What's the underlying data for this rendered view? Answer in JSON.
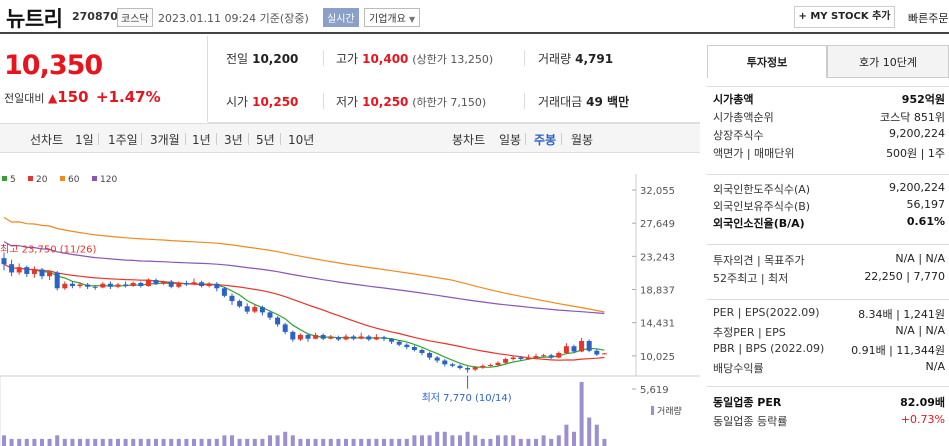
{
  "header": {
    "name": "뉴트리",
    "code": "270870",
    "market": "코스닥",
    "datetime": "2023.01.11 09:24 기준(장중)",
    "realtime": "실시간",
    "company_info": "기업개요",
    "mystock": "+ MY STOCK 추가",
    "quick_order": "빠른주문"
  },
  "price": {
    "current": "10,350",
    "change_label": "전일대비",
    "change_arrow": "▲",
    "change": "150",
    "change_pct": "+1.47%"
  },
  "quote": {
    "prev_label": "전일",
    "prev": "10,200",
    "high_label": "고가",
    "high": "10,400",
    "upper_limit": "(상한가 13,250)",
    "volume_label": "거래량",
    "volume": "4,791",
    "open_label": "시가",
    "open": "10,250",
    "low_label": "저가",
    "low": "10,250",
    "lower_limit": "(하한가 7,150)",
    "amount_label": "거래대금",
    "amount": "49 백만"
  },
  "periods": {
    "line_label": "선차트",
    "items": [
      "1일",
      "1주일",
      "3개월",
      "1년",
      "3년",
      "5년",
      "10년"
    ],
    "candle_label": "봉차트",
    "candles": [
      "일봉",
      "주봉",
      "월봉"
    ],
    "active_candle": "주봉"
  },
  "chart_data": {
    "type": "candlestick",
    "legend": [
      {
        "name": "5",
        "color": "#2fa52f"
      },
      {
        "name": "20",
        "color": "#e8342a"
      },
      {
        "name": "60",
        "color": "#f08a1c"
      },
      {
        "name": "120",
        "color": "#8a57b8"
      }
    ],
    "y_ticks": [
      "32,055",
      "27,649",
      "23,243",
      "18,837",
      "14,431",
      "10,025",
      "5,619"
    ],
    "ylim": [
      5619,
      32055
    ],
    "high_label": "최고 23,750 (11/26)",
    "low_label": "최저 7,770 (10/14)",
    "volume_label": "거래량",
    "candles": [
      [
        23000,
        22200,
        23750,
        21400
      ],
      [
        22200,
        21100,
        22800,
        20600
      ],
      [
        21100,
        21800,
        22300,
        20800
      ],
      [
        21800,
        20900,
        22000,
        20500
      ],
      [
        20900,
        21500,
        21900,
        20400
      ],
      [
        21500,
        20600,
        21700,
        20200
      ],
      [
        20600,
        21100,
        21300,
        20100
      ],
      [
        21100,
        19000,
        21300,
        18700
      ],
      [
        19000,
        19600,
        19900,
        18800
      ],
      [
        19600,
        19300,
        19900,
        19000
      ],
      [
        19300,
        19500,
        19800,
        19000
      ],
      [
        19500,
        19200,
        19700,
        18900
      ],
      [
        19200,
        19100,
        19400,
        18800
      ],
      [
        19100,
        19600,
        19800,
        19000
      ],
      [
        19600,
        19200,
        19900,
        18900
      ],
      [
        19200,
        19500,
        19700,
        19000
      ],
      [
        19500,
        19300,
        19900,
        19100
      ],
      [
        19300,
        19700,
        19900,
        19200
      ],
      [
        19700,
        19300,
        19900,
        19100
      ],
      [
        19300,
        20100,
        20300,
        19200
      ],
      [
        20100,
        19600,
        20300,
        19400
      ],
      [
        19600,
        19900,
        20000,
        19400
      ],
      [
        19900,
        19200,
        20100,
        19000
      ],
      [
        19200,
        19700,
        19900,
        19000
      ],
      [
        19700,
        19500,
        20000,
        19300
      ],
      [
        19500,
        19800,
        20300,
        19400
      ],
      [
        19800,
        19300,
        20000,
        19100
      ],
      [
        19300,
        19600,
        19800,
        19100
      ],
      [
        19600,
        19000,
        19800,
        18600
      ],
      [
        19000,
        18000,
        19200,
        17800
      ],
      [
        18000,
        17300,
        18300,
        16800
      ],
      [
        17300,
        16600,
        17500,
        16400
      ],
      [
        16600,
        15900,
        17000,
        15600
      ],
      [
        15900,
        16500,
        16800,
        15700
      ],
      [
        16500,
        15800,
        16700,
        15400
      ],
      [
        15800,
        15100,
        16000,
        14800
      ],
      [
        15100,
        14200,
        15300,
        13900
      ],
      [
        14200,
        13200,
        14400,
        12900
      ],
      [
        13200,
        12200,
        13400,
        11900
      ],
      [
        12200,
        12800,
        13000,
        12000
      ],
      [
        12800,
        12300,
        13000,
        11900
      ],
      [
        12300,
        12800,
        13100,
        12200
      ],
      [
        12800,
        12300,
        13000,
        12100
      ],
      [
        12300,
        12500,
        12800,
        12200
      ],
      [
        12500,
        12200,
        12700,
        12000
      ],
      [
        12200,
        12600,
        12900,
        12100
      ],
      [
        12600,
        12300,
        12800,
        12100
      ],
      [
        12300,
        12600,
        13100,
        12200
      ],
      [
        12600,
        12200,
        12800,
        12000
      ],
      [
        12200,
        12500,
        12900,
        12100
      ],
      [
        12500,
        12300,
        12700,
        12000
      ],
      [
        12300,
        11900,
        12400,
        11600
      ],
      [
        11900,
        11500,
        12100,
        11300
      ],
      [
        11500,
        11200,
        11700,
        10900
      ],
      [
        11200,
        10800,
        11400,
        10600
      ],
      [
        10800,
        10400,
        11000,
        10100
      ],
      [
        10400,
        9800,
        10600,
        9500
      ],
      [
        9800,
        9400,
        10000,
        9100
      ],
      [
        9400,
        8900,
        9600,
        8600
      ],
      [
        8900,
        8700,
        9100,
        8500
      ],
      [
        8700,
        8400,
        8900,
        8200
      ],
      [
        8400,
        8200,
        8600,
        7770
      ],
      [
        8200,
        8500,
        8700,
        8000
      ],
      [
        8500,
        8700,
        8900,
        8300
      ],
      [
        8700,
        8800,
        9000,
        8600
      ],
      [
        8800,
        9100,
        9300,
        8700
      ],
      [
        9100,
        9600,
        9800,
        8900
      ],
      [
        9600,
        9800,
        10000,
        9400
      ],
      [
        9800,
        9600,
        10000,
        9400
      ],
      [
        9600,
        9800,
        10200,
        9500
      ],
      [
        9800,
        10000,
        10300,
        9700
      ],
      [
        10000,
        10100,
        10300,
        9800
      ],
      [
        10100,
        9800,
        10300,
        9600
      ],
      [
        9800,
        10400,
        10600,
        9700
      ],
      [
        10400,
        11300,
        11700,
        10300
      ],
      [
        11300,
        10600,
        11500,
        10400
      ],
      [
        10600,
        12000,
        12400,
        10500
      ],
      [
        12000,
        10700,
        12200,
        10500
      ],
      [
        10700,
        10200,
        11000,
        10000
      ],
      [
        10250,
        10350,
        10400,
        10250
      ]
    ],
    "volume": [
      3,
      2,
      2,
      2,
      2,
      2,
      2,
      3,
      2,
      2,
      2,
      2,
      2,
      2,
      2,
      2,
      2,
      2,
      2,
      2,
      2,
      2,
      2,
      2,
      2,
      2,
      2,
      2,
      2,
      3,
      3,
      2,
      2,
      2,
      2,
      3,
      3,
      4,
      3,
      2,
      2,
      2,
      2,
      2,
      2,
      2,
      2,
      2,
      2,
      2,
      2,
      2,
      2,
      2,
      3,
      3,
      3,
      4,
      4,
      3,
      3,
      4,
      3,
      2,
      2,
      3,
      3,
      3,
      2,
      2,
      2,
      3,
      2,
      3,
      6,
      4,
      18,
      8,
      6,
      2
    ]
  },
  "side": {
    "tab_active": "투자정보",
    "tab_other": "호가 10단계",
    "rows1": [
      {
        "l": "시가총액",
        "r": "952억원",
        "bold": true
      },
      {
        "l": "시가총액순위",
        "r": "코스닥 851위"
      },
      {
        "l": "상장주식수",
        "r": "9,200,224"
      },
      {
        "l": "액면가 | 매매단위",
        "r": "500원 | 1주"
      }
    ],
    "rows2": [
      {
        "l": "외국인한도주식수(A)",
        "r": "9,200,224"
      },
      {
        "l": "외국인보유주식수(B)",
        "r": "56,197"
      },
      {
        "l": "외국인소진율(B/A)",
        "r": "0.61%",
        "bold": true
      }
    ],
    "rows3": [
      {
        "l": "투자의견 | 목표주가",
        "r": "N/A | N/A"
      },
      {
        "l": "52주최고 | 최저",
        "r": "22,250 | 7,770"
      }
    ],
    "rows4": [
      {
        "l": "PER | EPS(2022.09)",
        "r": "8.34배 | 1,241원"
      },
      {
        "l": "추정PER | EPS",
        "r": "N/A | N/A"
      },
      {
        "l": "PBR | BPS (2022.09)",
        "r": "0.91배 | 11,344원"
      },
      {
        "l": "배당수익률",
        "r": "N/A"
      }
    ],
    "rows5": [
      {
        "l": "동일업종 PER",
        "r": "82.09배",
        "bold": true
      },
      {
        "l": "동일업종 등락률",
        "r": "+0.73%",
        "red": true
      }
    ]
  }
}
